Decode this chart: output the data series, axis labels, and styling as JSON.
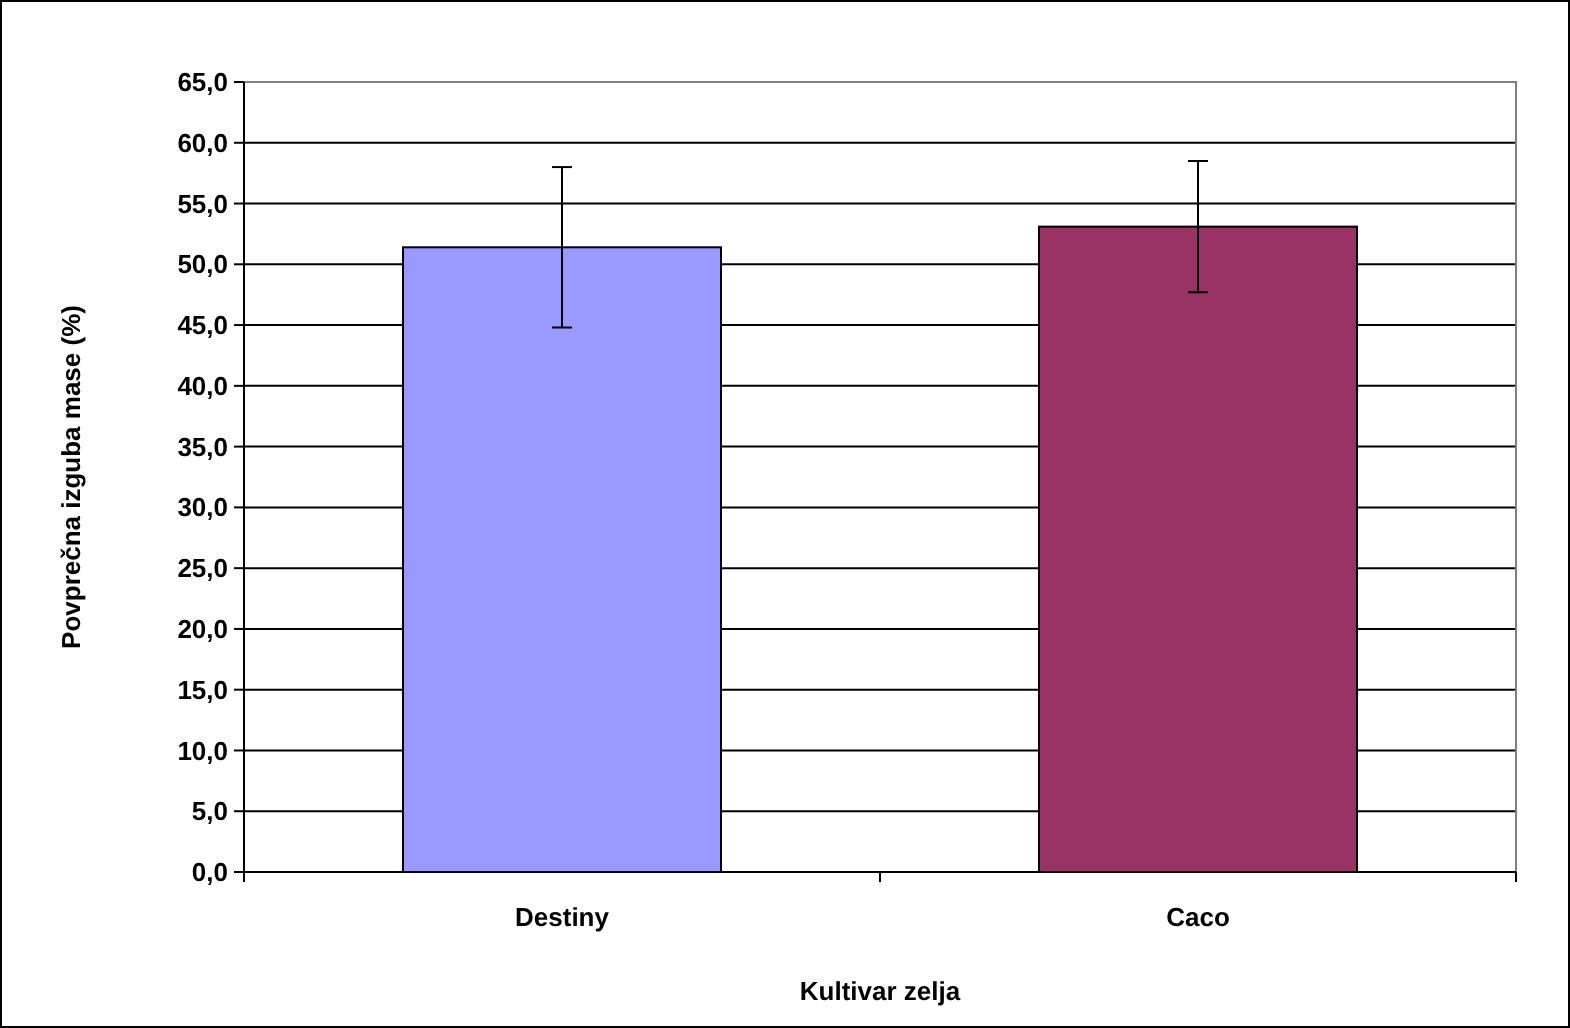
{
  "chart_data": {
    "type": "bar",
    "xlabel": "Kultivar zelja",
    "ylabel": "Povprečna izguba mase (%)",
    "categories": [
      "Destiny",
      "Caco"
    ],
    "values": [
      51.4,
      53.1
    ],
    "colors": [
      "#9999ff",
      "#993366"
    ],
    "errors": [
      6.6,
      5.4
    ],
    "ylim": [
      0,
      65
    ],
    "yticks": [
      {
        "value": 0,
        "label": "0,0"
      },
      {
        "value": 5,
        "label": "5,0"
      },
      {
        "value": 10,
        "label": "10,0"
      },
      {
        "value": 15,
        "label": "15,0"
      },
      {
        "value": 20,
        "label": "20,0"
      },
      {
        "value": 25,
        "label": "25,0"
      },
      {
        "value": 30,
        "label": "30,0"
      },
      {
        "value": 35,
        "label": "35,0"
      },
      {
        "value": 40,
        "label": "40,0"
      },
      {
        "value": 45,
        "label": "45,0"
      },
      {
        "value": 50,
        "label": "50,0"
      },
      {
        "value": 55,
        "label": "55,0"
      },
      {
        "value": 60,
        "label": "60,0"
      },
      {
        "value": 65,
        "label": "65,0"
      }
    ],
    "grid": "y"
  }
}
